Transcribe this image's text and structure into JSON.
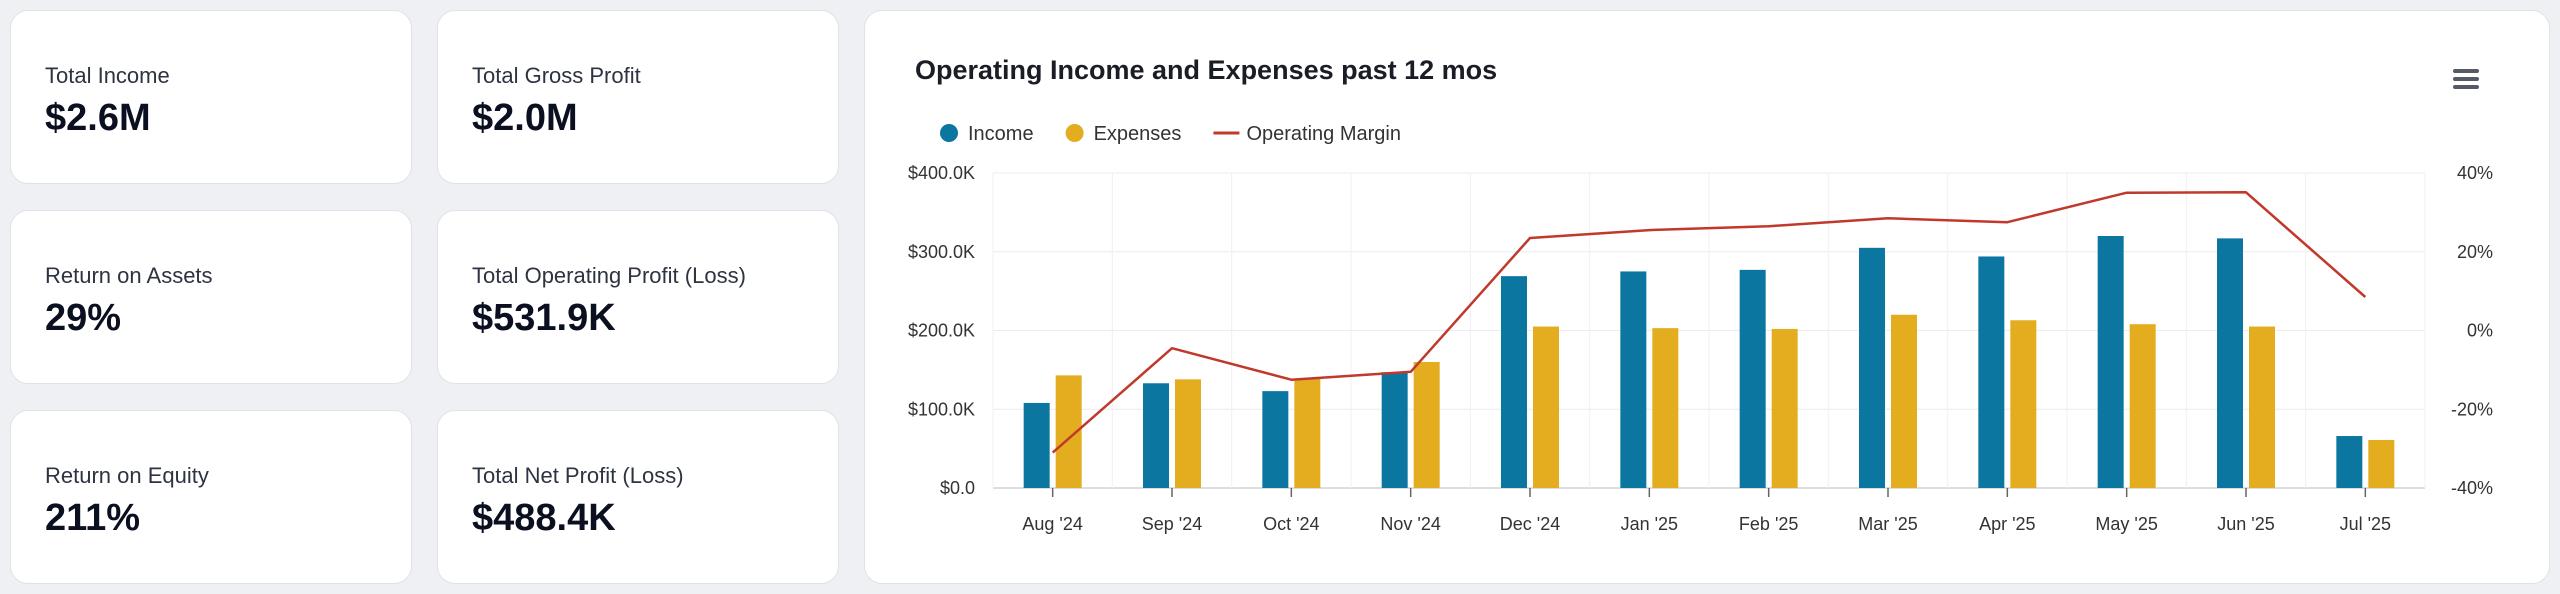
{
  "kpis": [
    {
      "label": "Total Income",
      "value": "$2.6M"
    },
    {
      "label": "Total Gross Profit",
      "value": "$2.0M"
    },
    {
      "label": "Return on Assets",
      "value": "29%"
    },
    {
      "label": "Total Operating Profit (Loss)",
      "value": "$531.9K"
    },
    {
      "label": "Return on Equity",
      "value": "211%"
    },
    {
      "label": "Total Net Profit (Loss)",
      "value": "$488.4K"
    }
  ],
  "chart": {
    "menu_icon": "hamburger-menu-icon"
  },
  "chart_data": {
    "type": "bar",
    "title": "Operating Income and Expenses past 12 mos",
    "categories": [
      "Aug '24",
      "Sep '24",
      "Oct '24",
      "Nov '24",
      "Dec '24",
      "Jan '25",
      "Feb '25",
      "Mar '25",
      "Apr '25",
      "May '25",
      "Jun '25",
      "Jul '25"
    ],
    "series": [
      {
        "name": "Income",
        "kind": "bar",
        "color": "#0b76a0",
        "axis": "left",
        "values": [
          108,
          133,
          123,
          147,
          269,
          275,
          277,
          305,
          294,
          320,
          317,
          66
        ]
      },
      {
        "name": "Expenses",
        "kind": "bar",
        "color": "#e3ad1f",
        "axis": "left",
        "values": [
          143,
          138,
          139,
          160,
          205,
          203,
          202,
          220,
          213,
          208,
          205,
          61
        ]
      },
      {
        "name": "Operating Margin",
        "kind": "line",
        "color": "#c0392b",
        "axis": "right",
        "values": [
          -31,
          -4.5,
          -12.5,
          -10.5,
          23.5,
          25.5,
          26.5,
          28.5,
          27.5,
          35,
          35.1,
          8.5
        ]
      }
    ],
    "y_left": {
      "min": 0,
      "max": 400,
      "ticks": [
        "$0.0",
        "$100.0K",
        "$200.0K",
        "$300.0K",
        "$400.0K"
      ]
    },
    "y_right": {
      "min": -40,
      "max": 40,
      "ticks": [
        "-40%",
        "-20%",
        "0%",
        "20%",
        "40%"
      ]
    },
    "legend_position": "top-left",
    "grid": true
  }
}
